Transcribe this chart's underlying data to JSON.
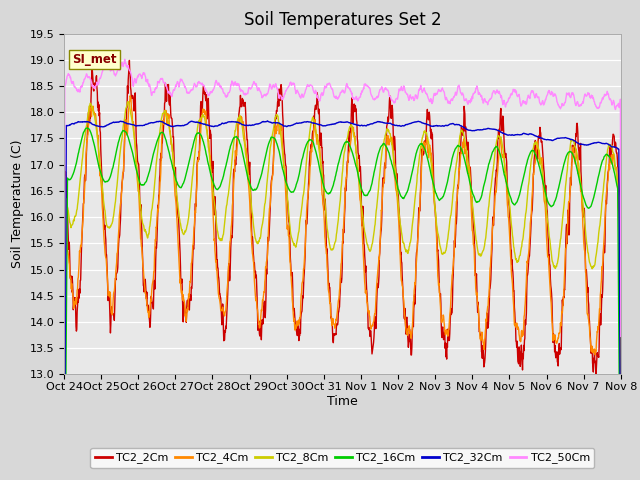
{
  "title": "Soil Temperatures Set 2",
  "xlabel": "Time",
  "ylabel": "Soil Temperature (C)",
  "ylim": [
    13.0,
    19.5
  ],
  "yticks": [
    13.0,
    13.5,
    14.0,
    14.5,
    15.0,
    15.5,
    16.0,
    16.5,
    17.0,
    17.5,
    18.0,
    18.5,
    19.0,
    19.5
  ],
  "xtick_labels": [
    "Oct 24",
    "Oct 25",
    "Oct 26",
    "Oct 27",
    "Oct 28",
    "Oct 29",
    "Oct 30",
    "Oct 31",
    "Nov 1",
    "Nov 2",
    "Nov 3",
    "Nov 4",
    "Nov 5",
    "Nov 6",
    "Nov 7",
    "Nov 8"
  ],
  "series_colors": [
    "#cc0000",
    "#ff8800",
    "#cccc00",
    "#00cc00",
    "#0000cc",
    "#ff88ff"
  ],
  "series_labels": [
    "TC2_2Cm",
    "TC2_4Cm",
    "TC2_8Cm",
    "TC2_16Cm",
    "TC2_32Cm",
    "TC2_50Cm"
  ],
  "fig_bg": "#d8d8d8",
  "plot_bg": "#e8e8e8",
  "annotation_text": "SI_met",
  "annotation_color": "#880000",
  "annotation_bg": "#ffffcc",
  "annotation_border": "#888800",
  "title_fontsize": 12,
  "axis_fontsize": 9,
  "tick_fontsize": 8,
  "linewidth": 1.0,
  "n_days": 15,
  "pts_per_day": 96
}
